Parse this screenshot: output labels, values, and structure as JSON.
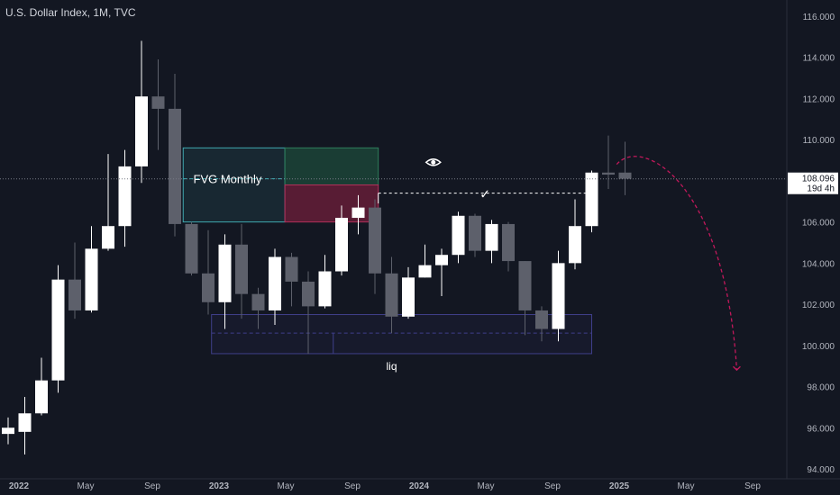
{
  "header": {
    "symbol_title": "U.S. Dollar Index, 1M, TVC"
  },
  "chart_data": {
    "type": "candlestick",
    "title": "U.S. Dollar Index, 1M, TVC",
    "ylim": [
      93.7,
      116.5
    ],
    "y_ticks": [
      "116.000",
      "114.000",
      "112.000",
      "110.000",
      "108.000",
      "106.000",
      "104.000",
      "102.000",
      "100.000",
      "98.000",
      "96.000",
      "94.000"
    ],
    "x_ticks": [
      {
        "label": "2022",
        "i": 0
      },
      {
        "label": "May",
        "i": 4
      },
      {
        "label": "Sep",
        "i": 8
      },
      {
        "label": "2023",
        "i": 12
      },
      {
        "label": "May",
        "i": 16
      },
      {
        "label": "Sep",
        "i": 20
      },
      {
        "label": "2024",
        "i": 24
      },
      {
        "label": "May",
        "i": 28
      },
      {
        "label": "Sep",
        "i": 32
      },
      {
        "label": "2025",
        "i": 36
      },
      {
        "label": "May",
        "i": 40
      },
      {
        "label": "Sep",
        "i": 44
      }
    ],
    "candles": [
      {
        "date": "2022-01",
        "o": 95.7,
        "h": 96.5,
        "l": 95.2,
        "c": 96.0
      },
      {
        "date": "2022-02",
        "o": 95.8,
        "h": 97.5,
        "l": 94.7,
        "c": 96.7
      },
      {
        "date": "2022-03",
        "o": 96.7,
        "h": 99.4,
        "l": 96.6,
        "c": 98.3
      },
      {
        "date": "2022-04",
        "o": 98.3,
        "h": 103.9,
        "l": 97.7,
        "c": 103.2
      },
      {
        "date": "2022-05",
        "o": 103.2,
        "h": 105.0,
        "l": 101.3,
        "c": 101.7
      },
      {
        "date": "2022-06",
        "o": 101.7,
        "h": 105.8,
        "l": 101.6,
        "c": 104.7
      },
      {
        "date": "2022-07",
        "o": 104.7,
        "h": 109.3,
        "l": 104.6,
        "c": 105.8
      },
      {
        "date": "2022-08",
        "o": 105.8,
        "h": 109.5,
        "l": 104.8,
        "c": 108.7
      },
      {
        "date": "2022-09",
        "o": 108.7,
        "h": 114.8,
        "l": 107.9,
        "c": 112.1
      },
      {
        "date": "2022-10",
        "o": 112.1,
        "h": 113.9,
        "l": 109.5,
        "c": 111.5
      },
      {
        "date": "2022-11",
        "o": 111.5,
        "h": 113.2,
        "l": 105.3,
        "c": 105.9
      },
      {
        "date": "2022-12",
        "o": 105.9,
        "h": 106.0,
        "l": 103.4,
        "c": 103.5
      },
      {
        "date": "2023-01",
        "o": 103.5,
        "h": 105.6,
        "l": 101.5,
        "c": 102.1
      },
      {
        "date": "2023-02",
        "o": 102.1,
        "h": 105.4,
        "l": 100.8,
        "c": 104.9
      },
      {
        "date": "2023-03",
        "o": 104.9,
        "h": 105.9,
        "l": 101.3,
        "c": 102.5
      },
      {
        "date": "2023-04",
        "o": 102.5,
        "h": 102.8,
        "l": 100.8,
        "c": 101.7
      },
      {
        "date": "2023-05",
        "o": 101.7,
        "h": 104.7,
        "l": 101.0,
        "c": 104.3
      },
      {
        "date": "2023-06",
        "o": 104.3,
        "h": 104.5,
        "l": 101.9,
        "c": 103.1
      },
      {
        "date": "2023-07",
        "o": 103.1,
        "h": 103.6,
        "l": 99.6,
        "c": 101.9
      },
      {
        "date": "2023-08",
        "o": 101.9,
        "h": 104.4,
        "l": 101.8,
        "c": 103.6
      },
      {
        "date": "2023-09",
        "o": 103.6,
        "h": 106.8,
        "l": 103.4,
        "c": 106.2
      },
      {
        "date": "2023-10",
        "o": 106.2,
        "h": 107.3,
        "l": 105.4,
        "c": 106.7
      },
      {
        "date": "2023-11",
        "o": 106.7,
        "h": 107.1,
        "l": 102.5,
        "c": 103.5
      },
      {
        "date": "2023-12",
        "o": 103.5,
        "h": 104.3,
        "l": 100.6,
        "c": 101.4
      },
      {
        "date": "2024-01",
        "o": 101.4,
        "h": 103.8,
        "l": 101.3,
        "c": 103.3
      },
      {
        "date": "2024-02",
        "o": 103.3,
        "h": 104.9,
        "l": 103.3,
        "c": 103.9
      },
      {
        "date": "2024-03",
        "o": 103.9,
        "h": 104.7,
        "l": 102.4,
        "c": 104.4
      },
      {
        "date": "2024-04",
        "o": 104.4,
        "h": 106.5,
        "l": 104.0,
        "c": 106.3
      },
      {
        "date": "2024-05",
        "o": 106.3,
        "h": 106.4,
        "l": 104.3,
        "c": 104.6
      },
      {
        "date": "2024-06",
        "o": 104.6,
        "h": 106.1,
        "l": 104.0,
        "c": 105.9
      },
      {
        "date": "2024-07",
        "o": 105.9,
        "h": 106.0,
        "l": 103.6,
        "c": 104.1
      },
      {
        "date": "2024-08",
        "o": 104.1,
        "h": 104.1,
        "l": 100.5,
        "c": 101.7
      },
      {
        "date": "2024-09",
        "o": 101.7,
        "h": 101.9,
        "l": 100.2,
        "c": 100.8
      },
      {
        "date": "2024-10",
        "o": 100.8,
        "h": 104.6,
        "l": 100.2,
        "c": 104.0
      },
      {
        "date": "2024-11",
        "o": 104.0,
        "h": 107.1,
        "l": 103.7,
        "c": 105.8
      },
      {
        "date": "2024-12",
        "o": 105.8,
        "h": 108.5,
        "l": 105.5,
        "c": 108.4
      },
      {
        "date": "2025-01",
        "o": 108.4,
        "h": 110.2,
        "l": 107.6,
        "c": 108.3
      },
      {
        "date": "2025-02",
        "o": 108.4,
        "h": 109.9,
        "l": 107.3,
        "c": 108.1
      }
    ],
    "price_label": {
      "value": "108.096",
      "countdown": "19d 4h",
      "price": 108.096
    },
    "annotations": {
      "fvg_label": "FVG Monthly",
      "fvg_zone": {
        "i_from": 10.5,
        "i_to": 16.6,
        "top": 106.0,
        "bottom": 109.6
      },
      "green_zone": {
        "i_from": 16.6,
        "i_to": 22.2,
        "top": 107.8,
        "bottom": 109.6
      },
      "red_zone": {
        "i_from": 16.6,
        "i_to": 22.2,
        "top": 106.0,
        "bottom": 107.8
      },
      "target_check": "✓",
      "liq_label": "liq",
      "liq_zone": {
        "i_from": 12.2,
        "i_to": 35.0,
        "top": 101.5,
        "bottom": 99.6,
        "mid": 100.6
      },
      "eye_icon": "eye-icon"
    },
    "colors": {
      "background": "#131722",
      "bull": "#ffffff",
      "bear": "#5d606b",
      "grid": "#1e222d",
      "text": "#b2b5be",
      "fvg_border": "#3fa8b0",
      "green_zone": "#1d4b3b",
      "red_zone": "#6a1e3a",
      "liq_border": "#3f3f8a",
      "projection": "#c2185b"
    }
  }
}
